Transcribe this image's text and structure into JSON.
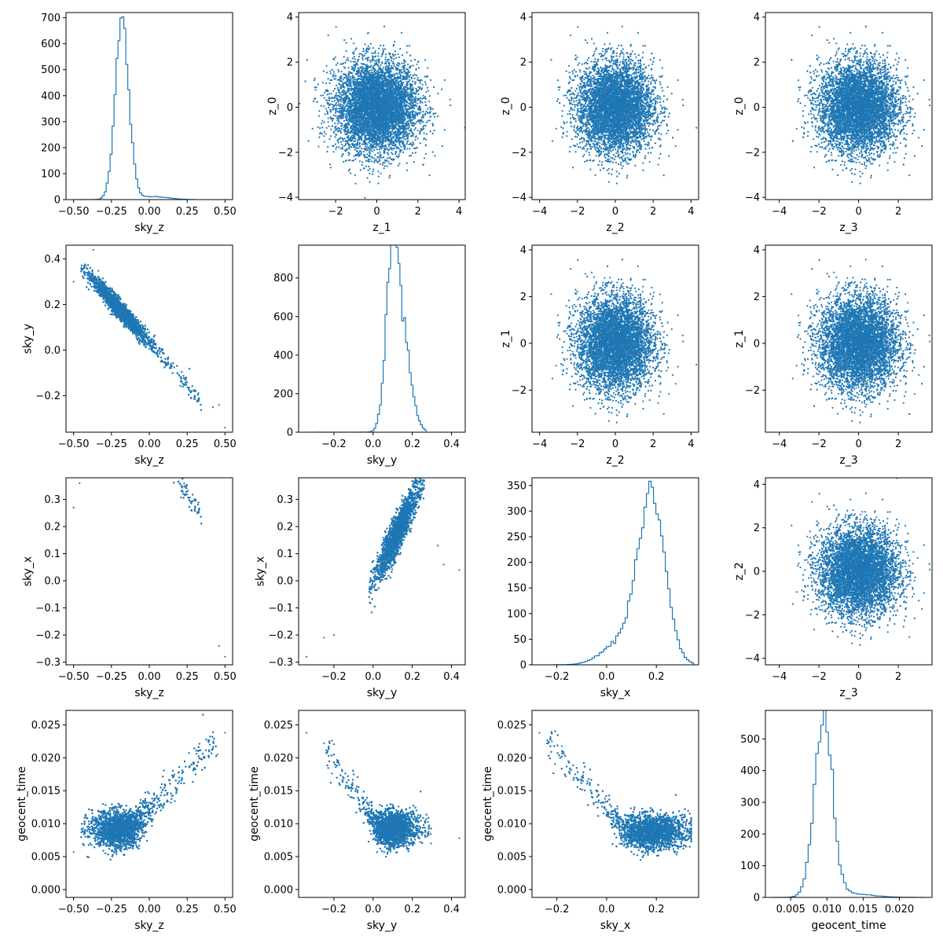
{
  "colors": {
    "series": "#1f77b4",
    "axis": "#000000",
    "background": "#ffffff"
  },
  "chart_data": [
    {
      "id": "r0c0",
      "type": "histogram",
      "xlabel": "sky_z",
      "ylabel": "",
      "xlim": [
        -0.55,
        0.55
      ],
      "ylim": [
        0,
        720
      ],
      "xticks": [
        -0.5,
        -0.25,
        0.0,
        0.25,
        0.5
      ],
      "xtick_labels": [
        "−0.50",
        "−0.25",
        "0.00",
        "0.25",
        "0.50"
      ],
      "yticks": [
        0,
        100,
        200,
        300,
        400,
        500,
        600,
        700
      ],
      "ytick_labels": [
        "0",
        "100",
        "200",
        "300",
        "400",
        "500",
        "600",
        "700"
      ],
      "peak": {
        "center": -0.18,
        "sd": 0.045,
        "height": 685
      },
      "tail": {
        "center": 0.02,
        "sd": 0.1,
        "height": 12
      },
      "range": [
        -0.48,
        0.3
      ]
    },
    {
      "id": "r0c1",
      "type": "scatter",
      "xlabel": "z_1",
      "ylabel": "z_0",
      "xlim": [
        -3.8,
        4.3
      ],
      "ylim": [
        -4.1,
        4.2
      ],
      "xticks": [
        -2,
        0,
        2,
        4
      ],
      "xtick_labels": [
        "−2",
        "0",
        "2",
        "4"
      ],
      "yticks": [
        -4,
        -2,
        0,
        2,
        4
      ],
      "ytick_labels": [
        "−4",
        "−2",
        "0",
        "2",
        "4"
      ],
      "distribution": {
        "kind": "gaussian",
        "cx": 0,
        "cy": 0,
        "sx": 1,
        "sy": 1
      }
    },
    {
      "id": "r0c2",
      "type": "scatter",
      "xlabel": "z_2",
      "ylabel": "z_0",
      "xlim": [
        -4.4,
        4.4
      ],
      "ylim": [
        -4.1,
        4.2
      ],
      "xticks": [
        -4,
        -2,
        0,
        2,
        4
      ],
      "xtick_labels": [
        "−4",
        "−2",
        "0",
        "2",
        "4"
      ],
      "yticks": [
        -4,
        -2,
        0,
        2,
        4
      ],
      "ytick_labels": [
        "−4",
        "−2",
        "0",
        "2",
        "4"
      ],
      "distribution": {
        "kind": "gaussian",
        "cx": 0,
        "cy": 0,
        "sx": 1,
        "sy": 1
      }
    },
    {
      "id": "r0c3",
      "type": "scatter",
      "xlabel": "z_3",
      "ylabel": "z_0",
      "xlim": [
        -4.7,
        3.7
      ],
      "ylim": [
        -4.1,
        4.2
      ],
      "xticks": [
        -4,
        -2,
        0,
        2
      ],
      "xtick_labels": [
        "−4",
        "−2",
        "0",
        "2"
      ],
      "yticks": [
        -4,
        -2,
        0,
        2,
        4
      ],
      "ytick_labels": [
        "−4",
        "−2",
        "0",
        "2",
        "4"
      ],
      "distribution": {
        "kind": "gaussian",
        "cx": 0,
        "cy": 0,
        "sx": 1,
        "sy": 1
      }
    },
    {
      "id": "r1c0",
      "type": "scatter",
      "xlabel": "sky_z",
      "ylabel": "sky_y",
      "xlim": [
        -0.55,
        0.55
      ],
      "ylim": [
        -0.36,
        0.46
      ],
      "xticks": [
        -0.5,
        -0.25,
        0.0,
        0.25,
        0.5
      ],
      "xtick_labels": [
        "−0.50",
        "−0.25",
        "0.00",
        "0.25",
        "0.50"
      ],
      "yticks": [
        -0.2,
        0.0,
        0.2,
        0.4
      ],
      "ytick_labels": [
        "−0.2",
        "0.0",
        "0.2",
        "0.4"
      ],
      "distribution": {
        "kind": "curve",
        "t": {
          "center": -0.2,
          "sd": 0.09,
          "min": -0.45,
          "max": 0.35
        },
        "poly": [
          0.035,
          -0.75,
          -0.05
        ],
        "noise": 0.02
      },
      "extra_points": [
        [
          -0.37,
          0.44
        ],
        [
          -0.5,
          0.3
        ],
        [
          0.5,
          -0.34
        ],
        [
          0.46,
          -0.24
        ],
        [
          0.42,
          -0.25
        ]
      ]
    },
    {
      "id": "r1c1",
      "type": "histogram",
      "xlabel": "sky_y",
      "ylabel": "",
      "xlim": [
        -0.38,
        0.47
      ],
      "ylim": [
        0,
        970
      ],
      "xticks": [
        -0.2,
        0.0,
        0.2,
        0.4
      ],
      "xtick_labels": [
        "−0.2",
        "0.0",
        "0.2",
        "0.4"
      ],
      "yticks": [
        0,
        200,
        400,
        600,
        800
      ],
      "ytick_labels": [
        "0",
        "200",
        "400",
        "600",
        "800"
      ],
      "peak": {
        "center": 0.1,
        "sd": 0.033,
        "height": 920
      },
      "tail": {
        "center": 0.16,
        "sd": 0.04,
        "height": 380
      },
      "range": [
        -0.3,
        0.27
      ]
    },
    {
      "id": "r1c2",
      "type": "scatter",
      "xlabel": "z_2",
      "ylabel": "z_1",
      "xlim": [
        -4.4,
        4.4
      ],
      "ylim": [
        -3.8,
        4.2
      ],
      "xticks": [
        -4,
        -2,
        0,
        2,
        4
      ],
      "xtick_labels": [
        "−4",
        "−2",
        "0",
        "2",
        "4"
      ],
      "yticks": [
        -2,
        0,
        2,
        4
      ],
      "ytick_labels": [
        "−2",
        "0",
        "2",
        "4"
      ],
      "distribution": {
        "kind": "gaussian",
        "cx": 0,
        "cy": 0,
        "sx": 1,
        "sy": 1
      }
    },
    {
      "id": "r1c3",
      "type": "scatter",
      "xlabel": "z_3",
      "ylabel": "z_1",
      "xlim": [
        -4.7,
        3.7
      ],
      "ylim": [
        -3.8,
        4.2
      ],
      "xticks": [
        -4,
        -2,
        0,
        2
      ],
      "xtick_labels": [
        "−4",
        "−2",
        "0",
        "2"
      ],
      "yticks": [
        -2,
        0,
        2,
        4
      ],
      "ytick_labels": [
        "−2",
        "0",
        "2",
        "4"
      ],
      "distribution": {
        "kind": "gaussian",
        "cx": 0,
        "cy": 0,
        "sx": 1,
        "sy": 1
      }
    },
    {
      "id": "r2c0",
      "type": "scatter",
      "xlabel": "sky_z",
      "ylabel": "sky_x",
      "xlim": [
        -0.55,
        0.55
      ],
      "ylim": [
        -0.31,
        0.38
      ],
      "xticks": [
        -0.5,
        -0.25,
        0.0,
        0.25,
        0.5
      ],
      "xtick_labels": [
        "−0.50",
        "−0.25",
        "0.00",
        "0.25",
        "0.50"
      ],
      "yticks": [
        -0.3,
        -0.2,
        -0.1,
        0.0,
        0.1,
        0.2,
        0.3
      ],
      "ytick_labels": [
        "−0.3",
        "−0.2",
        "−0.1",
        "0.0",
        "0.1",
        "0.2",
        "0.3"
      ],
      "distribution": {
        "kind": "curve",
        "t": {
          "center": -0.22,
          "sd": 0.09,
          "min": -0.42,
          "max": 0.35
        },
        "poly": [
          0.5,
          -0.72,
          -0.03
        ],
        "noise": 0.022
      },
      "extra_points": [
        [
          -0.5,
          0.27
        ],
        [
          -0.46,
          0.36
        ],
        [
          0.5,
          -0.28
        ],
        [
          0.46,
          -0.24
        ]
      ]
    },
    {
      "id": "r2c1",
      "type": "scatter",
      "xlabel": "sky_y",
      "ylabel": "sky_x",
      "xlim": [
        -0.38,
        0.47
      ],
      "ylim": [
        -0.31,
        0.38
      ],
      "xticks": [
        -0.2,
        0.0,
        0.2,
        0.4
      ],
      "xtick_labels": [
        "−0.2",
        "0.0",
        "0.2",
        "0.4"
      ],
      "yticks": [
        -0.3,
        -0.2,
        -0.1,
        0.0,
        0.1,
        0.2,
        0.3
      ],
      "ytick_labels": [
        "−0.3",
        "−0.2",
        "−0.1",
        "0.0",
        "0.1",
        "0.2",
        "0.3"
      ],
      "distribution": {
        "kind": "curve",
        "t": {
          "center": 0.12,
          "sd": 0.05,
          "min": -0.02,
          "max": 0.26
        },
        "poly": [
          0.0,
          1.45,
          -0.12
        ],
        "noise": 0.035
      },
      "extra_points": [
        [
          -0.34,
          -0.28
        ],
        [
          0.44,
          0.04
        ],
        [
          0.36,
          0.06
        ],
        [
          0.33,
          0.13
        ],
        [
          -0.25,
          -0.21
        ],
        [
          -0.2,
          -0.2
        ]
      ]
    },
    {
      "id": "r2c2",
      "type": "histogram",
      "xlabel": "sky_x",
      "ylabel": "",
      "xlim": [
        -0.3,
        0.37
      ],
      "ylim": [
        0,
        365
      ],
      "xticks": [
        -0.2,
        0.0,
        0.2
      ],
      "xtick_labels": [
        "−0.2",
        "0.0",
        "0.2"
      ],
      "yticks": [
        0,
        50,
        100,
        150,
        200,
        250,
        300,
        350
      ],
      "ytick_labels": [
        "0",
        "50",
        "100",
        "150",
        "200",
        "250",
        "300",
        "350"
      ],
      "peak": {
        "center": 0.18,
        "sd": 0.055,
        "height": 330
      },
      "tail": {
        "center": 0.05,
        "sd": 0.07,
        "height": 40
      },
      "range": [
        -0.22,
        0.35
      ]
    },
    {
      "id": "r2c3",
      "type": "scatter",
      "xlabel": "z_3",
      "ylabel": "z_2",
      "xlim": [
        -4.7,
        3.7
      ],
      "ylim": [
        -4.3,
        4.3
      ],
      "xticks": [
        -4,
        -2,
        0,
        2
      ],
      "xtick_labels": [
        "−4",
        "−2",
        "0",
        "2"
      ],
      "yticks": [
        -4,
        -2,
        0,
        2,
        4
      ],
      "ytick_labels": [
        "−4",
        "−2",
        "0",
        "2",
        "4"
      ],
      "distribution": {
        "kind": "gaussian",
        "cx": 0,
        "cy": 0,
        "sx": 1,
        "sy": 1
      }
    },
    {
      "id": "r3c0",
      "type": "scatter",
      "xlabel": "sky_z",
      "ylabel": "geocent_time",
      "xlim": [
        -0.55,
        0.55
      ],
      "ylim": [
        -0.0012,
        0.0272
      ],
      "xticks": [
        -0.5,
        -0.25,
        0.0,
        0.25,
        0.5
      ],
      "xtick_labels": [
        "−0.50",
        "−0.25",
        "0.00",
        "0.25",
        "0.50"
      ],
      "yticks": [
        0.0,
        0.005,
        0.01,
        0.015,
        0.02,
        0.025
      ],
      "ytick_labels": [
        "0.000",
        "0.005",
        "0.010",
        "0.015",
        "0.020",
        "0.025"
      ],
      "distribution": {
        "kind": "valley",
        "t": {
          "center": -0.2,
          "sd": 0.09,
          "min": -0.45,
          "max": 0.45
        },
        "knee": -0.1,
        "base": 0.0092,
        "slope": 0.025,
        "noise": 0.0014
      },
      "extra_points": [
        [
          -0.5,
          0.0057
        ],
        [
          0.5,
          0.0238
        ],
        [
          0.45,
          0.0205
        ],
        [
          0.4,
          0.022
        ]
      ]
    },
    {
      "id": "r3c1",
      "type": "scatter",
      "xlabel": "sky_y",
      "ylabel": "geocent_time",
      "xlim": [
        -0.38,
        0.47
      ],
      "ylim": [
        -0.0012,
        0.0272
      ],
      "xticks": [
        -0.2,
        0.0,
        0.2,
        0.4
      ],
      "xtick_labels": [
        "−0.2",
        "0.0",
        "0.2",
        "0.4"
      ],
      "yticks": [
        0.0,
        0.005,
        0.01,
        0.015,
        0.02,
        0.025
      ],
      "ytick_labels": [
        "0.000",
        "0.005",
        "0.010",
        "0.015",
        "0.020",
        "0.025"
      ],
      "distribution": {
        "kind": "valley_rev",
        "t": {
          "center": 0.1,
          "sd": 0.055,
          "min": -0.24,
          "max": 0.3
        },
        "knee": 0.02,
        "base": 0.0093,
        "slope": 0.046,
        "noise": 0.0013
      },
      "extra_points": [
        [
          -0.34,
          0.0238
        ],
        [
          -0.25,
          0.0222
        ],
        [
          0.44,
          0.0078
        ]
      ]
    },
    {
      "id": "r3c2",
      "type": "scatter",
      "xlabel": "sky_x",
      "ylabel": "geocent_time",
      "xlim": [
        -0.3,
        0.37
      ],
      "ylim": [
        -0.0012,
        0.0272
      ],
      "xticks": [
        -0.2,
        0.0,
        0.2
      ],
      "xtick_labels": [
        "−0.2",
        "0.0",
        "0.2"
      ],
      "yticks": [
        0.0,
        0.005,
        0.01,
        0.015,
        0.02,
        0.025
      ],
      "ytick_labels": [
        "0.000",
        "0.005",
        "0.010",
        "0.015",
        "0.020",
        "0.025"
      ],
      "distribution": {
        "kind": "valley_rev",
        "t": {
          "center": 0.18,
          "sd": 0.07,
          "min": -0.24,
          "max": 0.34
        },
        "knee": 0.07,
        "base": 0.0088,
        "slope": 0.045,
        "noise": 0.0013
      },
      "extra_points": [
        [
          -0.27,
          0.0238
        ],
        [
          -0.22,
          0.0225
        ],
        [
          -0.18,
          0.0218
        ]
      ]
    },
    {
      "id": "r3c3",
      "type": "histogram",
      "xlabel": "geocent_time",
      "ylabel": "",
      "xlim": [
        0.0015,
        0.0245
      ],
      "ylim": [
        0,
        590
      ],
      "xticks": [
        0.005,
        0.01,
        0.015,
        0.02
      ],
      "xtick_labels": [
        "0.005",
        "0.010",
        "0.015",
        "0.020"
      ],
      "yticks": [
        0,
        100,
        200,
        300,
        400,
        500
      ],
      "ytick_labels": [
        "0",
        "100",
        "200",
        "300",
        "400",
        "500"
      ],
      "peak": {
        "center": 0.0095,
        "sd": 0.00125,
        "height": 555
      },
      "tail": {
        "center": 0.013,
        "sd": 0.003,
        "height": 12
      },
      "range": [
        0.0025,
        0.0235
      ]
    }
  ]
}
